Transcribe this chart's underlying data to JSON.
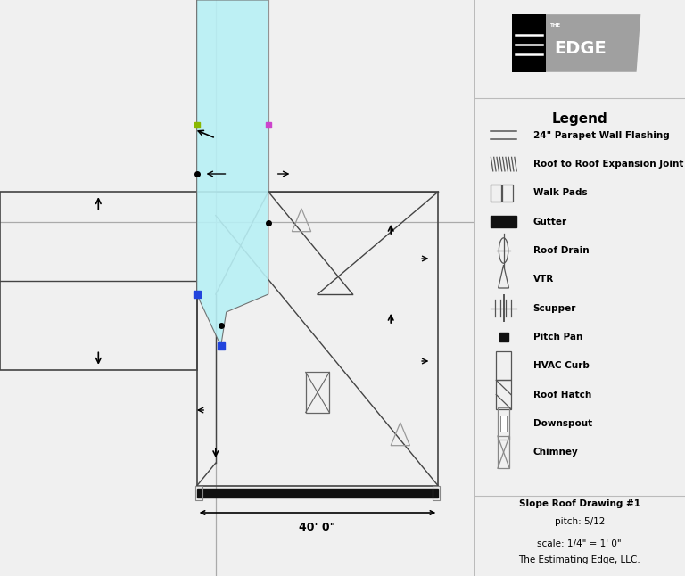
{
  "bg_color": "#f0f0f0",
  "panel_bg": "#ffffff",
  "line_color": "#444444",
  "gray_line": "#aaaaaa",
  "legend_items": [
    {
      "symbol": "double_line",
      "label": "24\" Parapet Wall Flashing"
    },
    {
      "symbol": "hatch_line",
      "label": "Roof to Roof Expansion Joint"
    },
    {
      "symbol": "walk_pads",
      "label": "Walk Pads"
    },
    {
      "symbol": "gutter",
      "label": "Gutter"
    },
    {
      "symbol": "roof_drain",
      "label": "Roof Drain"
    },
    {
      "symbol": "vtr",
      "label": "VTR"
    },
    {
      "symbol": "scupper",
      "label": "Scupper"
    },
    {
      "symbol": "pitch_pan",
      "label": "Pitch Pan"
    },
    {
      "symbol": "hvac_curb",
      "label": "HVAC Curb"
    },
    {
      "symbol": "roof_hatch",
      "label": "Roof Hatch"
    },
    {
      "symbol": "downspout",
      "label": "Downspout"
    },
    {
      "symbol": "chimney",
      "label": "Chimney"
    }
  ],
  "footer_lines": [
    {
      "text": "Slope Roof Drawing #1",
      "bold": true
    },
    {
      "text": "pitch: 5/12",
      "bold": false
    },
    {
      "text": "",
      "bold": false
    },
    {
      "text": "scale: 1/4\" = 1' 0\"",
      "bold": false
    },
    {
      "text": "The Estimating Edge, LLC.",
      "bold": false
    }
  ]
}
